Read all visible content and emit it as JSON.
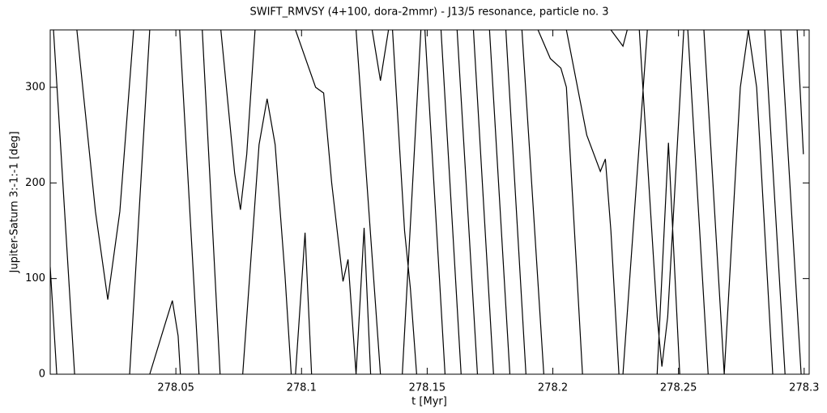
{
  "chart_data": {
    "type": "line",
    "title": "SWIFT_RMVSY (4+100, dora-2mmr) - J13/5 resonance, particle no. 3",
    "x_label": "t [Myr]",
    "y_label": "Jupiter-Saturn  3:-1:-1 [deg]",
    "color": "#000000",
    "xlim": [
      278.0,
      278.302
    ],
    "ylim": [
      0,
      360
    ],
    "xticks": [
      278.05,
      278.1,
      278.15,
      278.2,
      278.25,
      278.3
    ],
    "yticks": [
      0,
      100,
      200,
      300
    ],
    "x": [
      278.0,
      278.0026,
      null,
      278.0013,
      278.0097,
      null,
      278.0106,
      278.018,
      278.0229,
      278.0277,
      278.0332,
      null,
      278.0316,
      278.0396,
      null,
      278.0396,
      278.046,
      278.0486,
      278.0509,
      278.0518,
      null,
      278.0515,
      278.0592,
      null,
      278.0605,
      278.0676,
      null,
      278.0679,
      278.0734,
      278.0757,
      278.0782,
      278.0815,
      null,
      278.0766,
      278.0831,
      278.0863,
      278.0895,
      278.0934,
      278.0959,
      null,
      278.0976,
      278.1014,
      278.104,
      null,
      278.0976,
      278.1056,
      278.1088,
      278.112,
      278.1165,
      278.1185,
      278.1217,
      null,
      278.1217,
      278.1249,
      278.1275,
      null,
      278.1281,
      278.1314,
      278.1346,
      null,
      278.1217,
      278.1314,
      null,
      278.1362,
      278.141,
      278.1433,
      278.1458,
      null,
      278.1401,
      278.1475,
      null,
      278.1491,
      278.1571,
      null,
      278.1555,
      278.1635,
      null,
      278.1619,
      278.17,
      null,
      278.1684,
      278.1764,
      null,
      278.1748,
      278.1829,
      null,
      278.1813,
      278.1893,
      null,
      278.1877,
      278.1964,
      null,
      278.1941,
      278.199,
      278.2032,
      278.2054,
      278.2118,
      null,
      278.2054,
      278.2135,
      278.2189,
      278.2209,
      278.2231,
      278.2263,
      null,
      278.2231,
      278.2279,
      278.2296,
      null,
      278.2279,
      278.2376,
      null,
      278.2344,
      278.2415,
      278.2434,
      278.2457,
      278.2521,
      null,
      278.2415,
      278.246,
      278.2505,
      null,
      278.2537,
      278.2618,
      null,
      278.2601,
      278.2682,
      null,
      278.2682,
      278.2746,
      278.2778,
      null,
      278.2778,
      278.2811,
      278.2875,
      null,
      278.2843,
      278.2924,
      null,
      278.2907,
      278.2988,
      null,
      278.2972,
      278.2997
    ],
    "values": [
      112,
      0,
      null,
      360,
      0,
      null,
      360,
      170,
      78,
      170,
      360,
      null,
      0,
      360,
      null,
      0,
      55,
      77,
      40,
      0,
      null,
      360,
      0,
      null,
      360,
      0,
      null,
      360,
      210,
      172,
      230,
      360,
      null,
      0,
      240,
      288,
      240,
      104,
      0,
      null,
      0,
      148,
      0,
      null,
      360,
      300,
      294,
      200,
      97,
      120,
      0,
      null,
      0,
      153,
      0,
      null,
      360,
      307,
      360,
      null,
      360,
      0,
      null,
      360,
      150,
      90,
      0,
      null,
      0,
      360,
      null,
      360,
      0,
      null,
      360,
      0,
      null,
      360,
      0,
      null,
      360,
      0,
      null,
      360,
      0,
      null,
      360,
      0,
      null,
      360,
      0,
      null,
      360,
      330,
      320,
      300,
      0,
      null,
      360,
      250,
      212,
      225,
      150,
      0,
      null,
      360,
      343,
      360,
      null,
      0,
      360,
      null,
      360,
      60,
      8,
      60,
      360,
      null,
      0,
      242,
      0,
      null,
      360,
      0,
      null,
      360,
      0,
      null,
      0,
      300,
      360,
      null,
      360,
      300,
      0,
      null,
      360,
      0,
      null,
      360,
      0,
      null,
      360,
      230
    ]
  }
}
